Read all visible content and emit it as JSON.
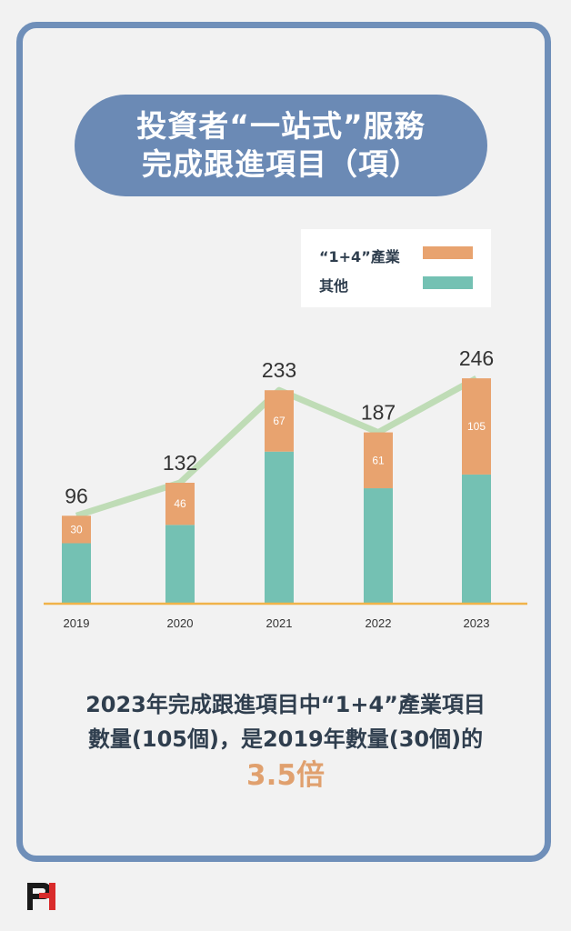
{
  "title": {
    "line1": "投資者“一站式”服務",
    "line2": "完成跟進項目（項）"
  },
  "legend": [
    {
      "label": "“1+4”產業",
      "color": "#e8a36f"
    },
    {
      "label": "其他",
      "color": "#74c1b3"
    }
  ],
  "chart_data": {
    "type": "bar",
    "stacked": true,
    "categories": [
      "2019",
      "2020",
      "2021",
      "2022",
      "2023"
    ],
    "series": [
      {
        "name": "其他",
        "values": [
          66,
          86,
          166,
          126,
          141
        ],
        "color": "#74c1b3"
      },
      {
        "name": "“1+4”產業",
        "values": [
          30,
          46,
          67,
          61,
          105
        ],
        "color": "#e8a36f"
      }
    ],
    "totals": [
      96,
      132,
      233,
      187,
      246
    ],
    "trend_line_color": "#bfdcb6",
    "baseline_color": "#f0b34a",
    "ylim": [
      0,
      260
    ],
    "grid": false,
    "legend_position": "top-right"
  },
  "summary": {
    "line1": "2023年完成跟進項目中“1+4”產業項目",
    "line2": "數量(105個)，是2019年數量(30個)的",
    "highlight": "3.5倍"
  },
  "logo": {
    "icon": "pi-logo"
  }
}
